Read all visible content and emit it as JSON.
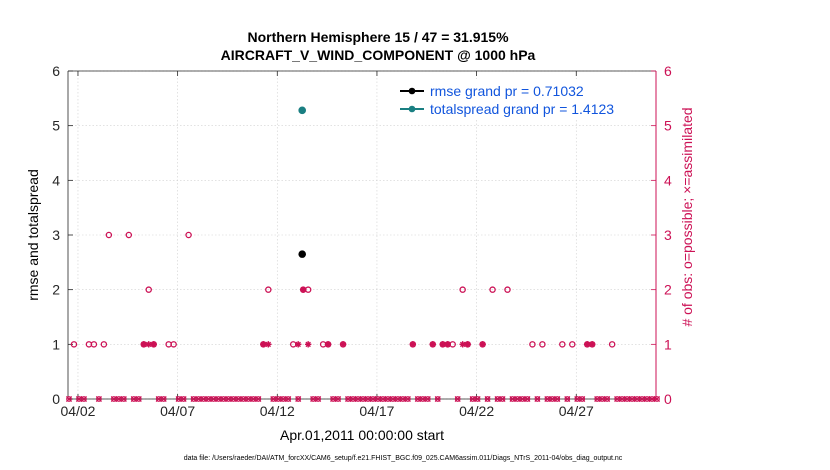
{
  "chart_data": {
    "type": "scatter",
    "title_line1": "Northern Hemisphere 15 / 47 = 31.915%",
    "title_line2": "AIRCRAFT_V_WIND_COMPONENT @ 1000 hPa",
    "xlabel": "Apr.01,2011 00:00:00 start",
    "ylabel_left": "rmse and totalspread",
    "ylabel_right": "# of obs: o=possible; ×=assimilated",
    "footnote": "data file: /Users/raeder/DAI/ATM_forcXX/CAM6_setup/f.e21.FHIST_BGC.f09_025.CAM6assim.011/Diags_NTrS_2011-04/obs_diag_output.nc",
    "xlim": [
      1.5,
      31.0
    ],
    "ylim": [
      0,
      6
    ],
    "ylim_right": [
      0,
      6
    ],
    "x_ticks": [
      2,
      7,
      12,
      17,
      22,
      27
    ],
    "x_ticklabels": [
      "04/02",
      "04/07",
      "04/12",
      "04/17",
      "04/22",
      "04/27"
    ],
    "y_ticks": [
      0,
      1,
      2,
      3,
      4,
      5,
      6
    ],
    "y_ticklabels": [
      "0",
      "1",
      "2",
      "3",
      "4",
      "5",
      "6"
    ],
    "grid": true,
    "legend_position": "top-right",
    "colors": {
      "rmse": "#000000",
      "totalspread": "#1a7f82",
      "obs": "#cc1155",
      "legend_text": "#1155dd",
      "grid": "#d0d0d0"
    },
    "series": [
      {
        "name": "rmse",
        "label": "rmse grand pr = 0.71032",
        "x": [
          13.25
        ],
        "y": [
          2.65
        ]
      },
      {
        "name": "totalspread",
        "label": "totalspread grand pr = 1.4123",
        "x": [
          13.25
        ],
        "y": [
          5.28
        ]
      }
    ],
    "obs_possible": {
      "x": [
        1.8,
        2.55,
        2.8,
        3.3,
        3.55,
        4.55,
        5.3,
        5.55,
        5.8,
        6.55,
        6.8,
        7.55,
        11.3,
        11.55,
        12.8,
        13.3,
        13.55,
        14.3,
        14.55,
        15.3,
        18.8,
        19.8,
        20.3,
        20.55,
        20.8,
        21.3,
        21.55,
        22.3,
        22.8,
        23.55,
        24.8,
        25.3,
        26.3,
        26.8,
        27.55,
        27.8,
        28.8
      ],
      "y": [
        1,
        1,
        1,
        1,
        3,
        3,
        1,
        2,
        1,
        1,
        1,
        3,
        1,
        2,
        1,
        2,
        2,
        1,
        1,
        1,
        1,
        1,
        1,
        1,
        1,
        2,
        1,
        1,
        2,
        2,
        1,
        1,
        1,
        1,
        1,
        1,
        1
      ]
    },
    "obs_assimilated": {
      "x": [
        11.3,
        13.3,
        5.3,
        5.55,
        5.8,
        11.55,
        13.05,
        13.55,
        14.55,
        15.3,
        18.8,
        19.8,
        20.3,
        20.55,
        21.3,
        21.55,
        22.3,
        27.55,
        27.8
      ],
      "y": [
        1,
        2,
        1,
        1,
        1,
        1,
        1,
        1,
        1,
        1,
        1,
        1,
        1,
        1,
        1,
        1,
        1,
        1,
        1
      ]
    }
  }
}
